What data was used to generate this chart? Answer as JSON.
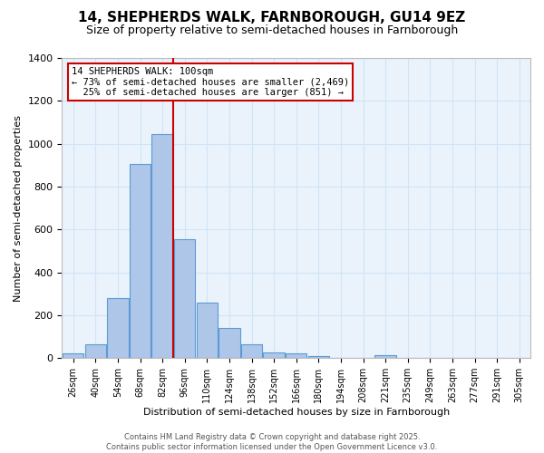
{
  "title": "14, SHEPHERDS WALK, FARNBOROUGH, GU14 9EZ",
  "subtitle": "Size of property relative to semi-detached houses in Farnborough",
  "xlabel": "Distribution of semi-detached houses by size in Farnborough",
  "ylabel": "Number of semi-detached properties",
  "footer_line1": "Contains HM Land Registry data © Crown copyright and database right 2025.",
  "footer_line2": "Contains public sector information licensed under the Open Government Licence v3.0.",
  "bin_labels": [
    "26sqm",
    "40sqm",
    "54sqm",
    "68sqm",
    "82sqm",
    "96sqm",
    "110sqm",
    "124sqm",
    "138sqm",
    "152sqm",
    "166sqm",
    "180sqm",
    "194sqm",
    "208sqm",
    "221sqm",
    "235sqm",
    "249sqm",
    "263sqm",
    "277sqm",
    "291sqm",
    "305sqm"
  ],
  "bar_values": [
    20,
    65,
    280,
    905,
    1045,
    555,
    260,
    140,
    65,
    27,
    22,
    8,
    0,
    0,
    12,
    0,
    0,
    0,
    0,
    0,
    0
  ],
  "bar_color": "#aec6e8",
  "bar_edge_color": "#5b9bd5",
  "grid_color": "#d0e4f7",
  "background_color": "#eaf3fb",
  "vline_color": "#cc0000",
  "property_label": "14 SHEPHERDS WALK: 100sqm",
  "pct_smaller": 73,
  "count_smaller": 2469,
  "pct_larger": 25,
  "count_larger": 851,
  "annotation_box_color": "#cc0000",
  "ylim": [
    0,
    1400
  ],
  "yticks": [
    0,
    200,
    400,
    600,
    800,
    1000,
    1200,
    1400
  ]
}
